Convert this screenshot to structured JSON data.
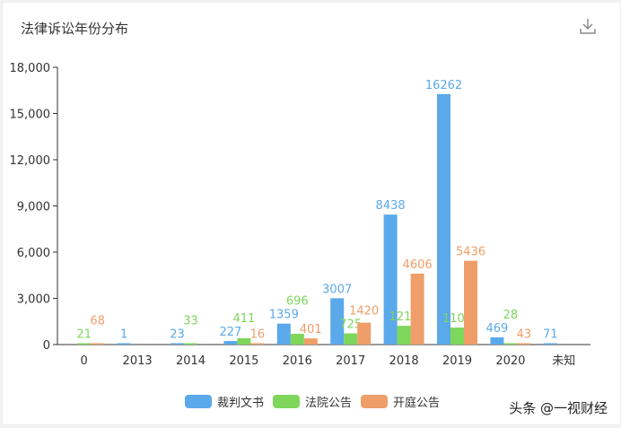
{
  "header": {
    "title": "法律诉讼年份分布",
    "download_icon": "download-icon"
  },
  "watermark": "头条 @一视财经",
  "chart_data": {
    "type": "bar",
    "title": "法律诉讼年份分布",
    "categories": [
      "0",
      "2013",
      "2014",
      "2015",
      "2016",
      "2017",
      "2018",
      "2019",
      "2020",
      "未知"
    ],
    "ylim": [
      0,
      18000
    ],
    "yticks": [
      0,
      3000,
      6000,
      9000,
      12000,
      15000,
      18000
    ],
    "ytick_labels": [
      "0",
      "3,000",
      "6,000",
      "9,000",
      "12,000",
      "15,000",
      "18,000"
    ],
    "grid": false,
    "legend_position": "bottom",
    "series": [
      {
        "name": "裁判文书",
        "color": "#5aa9ea",
        "values": [
          null,
          1,
          23,
          227,
          1359,
          3007,
          8438,
          16262,
          469,
          71
        ]
      },
      {
        "name": "法院公告",
        "color": "#7ed65a",
        "values": [
          21,
          null,
          33,
          411,
          696,
          725,
          1217,
          1104,
          28,
          null
        ]
      },
      {
        "name": "开庭公告",
        "color": "#ef9e69",
        "values": [
          68,
          null,
          null,
          16,
          401,
          1420,
          4606,
          5436,
          43,
          null
        ]
      }
    ]
  }
}
